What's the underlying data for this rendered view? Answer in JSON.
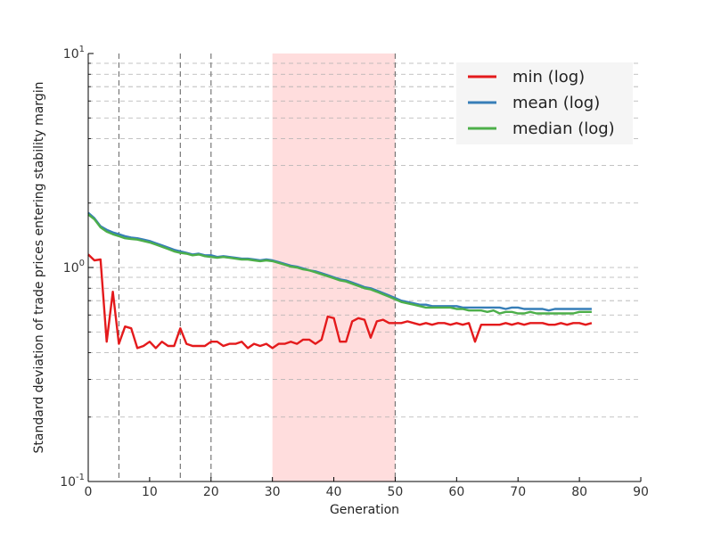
{
  "chart_data": {
    "type": "line",
    "xlabel": "Generation",
    "ylabel": "Standard deviation of trade prices entering stability margin",
    "xlim": [
      0,
      90
    ],
    "ylim": [
      0.1,
      10
    ],
    "yscale": "log",
    "grid": "horizontal dashed",
    "x_ticks": [
      "0",
      "10",
      "20",
      "30",
      "40",
      "50",
      "60",
      "70",
      "80",
      "90"
    ],
    "y_ticks": [
      {
        "base": "10",
        "exp": "-1"
      },
      {
        "base": "10",
        "exp": "0"
      },
      {
        "base": "10",
        "exp": "1"
      }
    ],
    "legend_position": "top-right",
    "vlines": [
      5,
      15,
      20,
      50
    ],
    "shaded_span": {
      "x0": 30,
      "x1": 50,
      "color": "#ffdddd"
    },
    "series": [
      {
        "name": "min (log)",
        "color": "#e41a1c",
        "x": [
          0,
          1,
          2,
          3,
          4,
          5,
          6,
          7,
          8,
          9,
          10,
          11,
          12,
          13,
          14,
          15,
          16,
          17,
          18,
          19,
          20,
          21,
          22,
          23,
          24,
          25,
          26,
          27,
          28,
          29,
          30,
          31,
          32,
          33,
          34,
          35,
          36,
          37,
          38,
          39,
          40,
          41,
          42,
          43,
          44,
          45,
          46,
          47,
          48,
          49,
          50,
          51,
          52,
          53,
          54,
          55,
          56,
          57,
          58,
          59,
          60,
          61,
          62,
          63,
          64,
          65,
          66,
          67,
          68,
          69,
          70,
          71,
          72,
          73,
          74,
          75,
          76,
          77,
          78,
          79,
          80,
          81,
          82
        ],
        "y": [
          1.15,
          1.08,
          1.09,
          0.45,
          0.77,
          0.44,
          0.53,
          0.52,
          0.42,
          0.43,
          0.45,
          0.42,
          0.45,
          0.43,
          0.43,
          0.52,
          0.44,
          0.43,
          0.43,
          0.43,
          0.45,
          0.45,
          0.43,
          0.44,
          0.44,
          0.45,
          0.42,
          0.44,
          0.43,
          0.44,
          0.42,
          0.44,
          0.44,
          0.45,
          0.44,
          0.46,
          0.46,
          0.44,
          0.46,
          0.59,
          0.58,
          0.45,
          0.45,
          0.56,
          0.58,
          0.57,
          0.47,
          0.56,
          0.57,
          0.55,
          0.55,
          0.55,
          0.56,
          0.55,
          0.54,
          0.55,
          0.54,
          0.55,
          0.55,
          0.54,
          0.55,
          0.54,
          0.55,
          0.45,
          0.54,
          0.54,
          0.54,
          0.54,
          0.55,
          0.54,
          0.55,
          0.54,
          0.55,
          0.55,
          0.55,
          0.54,
          0.54,
          0.55,
          0.54,
          0.55,
          0.55,
          0.54,
          0.55
        ]
      },
      {
        "name": "mean (log)",
        "color": "#377eb8",
        "x": [
          0,
          1,
          2,
          3,
          4,
          5,
          6,
          7,
          8,
          9,
          10,
          11,
          12,
          13,
          14,
          15,
          16,
          17,
          18,
          19,
          20,
          21,
          22,
          23,
          24,
          25,
          26,
          27,
          28,
          29,
          30,
          31,
          32,
          33,
          34,
          35,
          36,
          37,
          38,
          39,
          40,
          41,
          42,
          43,
          44,
          45,
          46,
          47,
          48,
          49,
          50,
          51,
          52,
          53,
          54,
          55,
          56,
          57,
          58,
          59,
          60,
          61,
          62,
          63,
          64,
          65,
          66,
          67,
          68,
          69,
          70,
          71,
          72,
          73,
          74,
          75,
          76,
          77,
          78,
          79,
          80,
          81,
          82
        ],
        "y": [
          1.8,
          1.7,
          1.56,
          1.5,
          1.46,
          1.43,
          1.4,
          1.38,
          1.37,
          1.35,
          1.33,
          1.3,
          1.27,
          1.24,
          1.21,
          1.19,
          1.17,
          1.15,
          1.16,
          1.14,
          1.14,
          1.12,
          1.13,
          1.12,
          1.11,
          1.1,
          1.1,
          1.09,
          1.08,
          1.09,
          1.08,
          1.06,
          1.04,
          1.02,
          1.01,
          0.99,
          0.97,
          0.96,
          0.94,
          0.92,
          0.9,
          0.88,
          0.87,
          0.85,
          0.83,
          0.81,
          0.8,
          0.78,
          0.76,
          0.74,
          0.72,
          0.7,
          0.69,
          0.68,
          0.67,
          0.67,
          0.66,
          0.66,
          0.66,
          0.66,
          0.66,
          0.65,
          0.65,
          0.65,
          0.65,
          0.65,
          0.65,
          0.65,
          0.64,
          0.65,
          0.65,
          0.64,
          0.64,
          0.64,
          0.64,
          0.63,
          0.64,
          0.64,
          0.64,
          0.64,
          0.64,
          0.64,
          0.64
        ]
      },
      {
        "name": "median (log)",
        "color": "#4daf4a",
        "x": [
          0,
          1,
          2,
          3,
          4,
          5,
          6,
          7,
          8,
          9,
          10,
          11,
          12,
          13,
          14,
          15,
          16,
          17,
          18,
          19,
          20,
          21,
          22,
          23,
          24,
          25,
          26,
          27,
          28,
          29,
          30,
          31,
          32,
          33,
          34,
          35,
          36,
          37,
          38,
          39,
          40,
          41,
          42,
          43,
          44,
          45,
          46,
          47,
          48,
          49,
          50,
          51,
          52,
          53,
          54,
          55,
          56,
          57,
          58,
          59,
          60,
          61,
          62,
          63,
          64,
          65,
          66,
          67,
          68,
          69,
          70,
          71,
          72,
          73,
          74,
          75,
          76,
          77,
          78,
          79,
          80,
          81,
          82
        ],
        "y": [
          1.77,
          1.68,
          1.54,
          1.47,
          1.43,
          1.4,
          1.37,
          1.36,
          1.35,
          1.33,
          1.31,
          1.28,
          1.25,
          1.22,
          1.19,
          1.17,
          1.16,
          1.14,
          1.15,
          1.13,
          1.12,
          1.11,
          1.12,
          1.11,
          1.1,
          1.09,
          1.09,
          1.08,
          1.07,
          1.08,
          1.07,
          1.05,
          1.03,
          1.01,
          1.0,
          0.98,
          0.97,
          0.95,
          0.93,
          0.91,
          0.89,
          0.87,
          0.86,
          0.84,
          0.82,
          0.8,
          0.79,
          0.77,
          0.75,
          0.73,
          0.71,
          0.69,
          0.68,
          0.67,
          0.66,
          0.65,
          0.65,
          0.65,
          0.65,
          0.65,
          0.64,
          0.64,
          0.63,
          0.63,
          0.63,
          0.62,
          0.63,
          0.61,
          0.62,
          0.62,
          0.61,
          0.61,
          0.62,
          0.61,
          0.61,
          0.61,
          0.61,
          0.61,
          0.61,
          0.61,
          0.62,
          0.62,
          0.62
        ]
      }
    ]
  }
}
